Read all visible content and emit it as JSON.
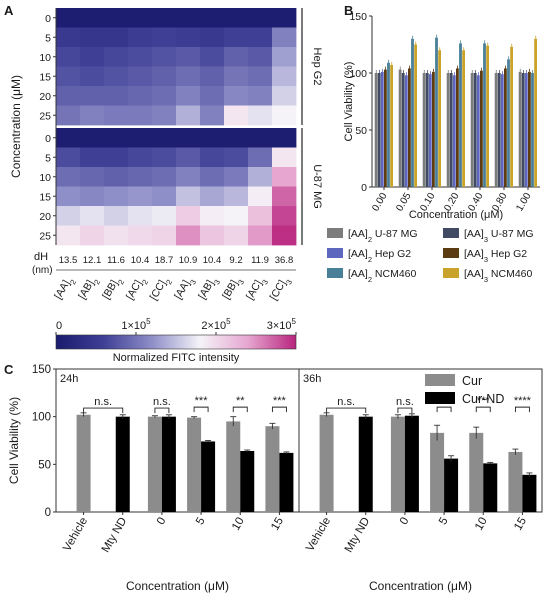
{
  "panels": {
    "a": "A",
    "b": "B",
    "c": "C"
  },
  "chart_data": [
    {
      "id": "A",
      "type": "heatmap",
      "ylabel": "Concentration (μM)",
      "row_labels": [
        "0",
        "5",
        "10",
        "15",
        "20",
        "25"
      ],
      "groups": [
        "Hep G2",
        "U-87 MG"
      ],
      "columns": [
        {
          "base": "[AA]",
          "sub": "2"
        },
        {
          "base": "[AB]",
          "sub": "2"
        },
        {
          "base": "[BB]",
          "sub": "2"
        },
        {
          "base": "[AC]",
          "sub": "2"
        },
        {
          "base": "[CC]",
          "sub": "2"
        },
        {
          "base": "[AA]",
          "sub": "3"
        },
        {
          "base": "[AB]",
          "sub": "3"
        },
        {
          "base": "[BB]",
          "sub": "3"
        },
        {
          "base": "[AC]",
          "sub": "3"
        },
        {
          "base": "[CC]",
          "sub": "3"
        }
      ],
      "dh_label": "dH",
      "dh_unit": "(nm)",
      "dh_values": [
        "13.5",
        "12.1",
        "11.6",
        "10.4",
        "18.7",
        "10.9",
        "10.4",
        "9.2",
        "11.9",
        "36.8"
      ],
      "values_e5": {
        "Hep G2": [
          [
            0.05,
            0.05,
            0.05,
            0.05,
            0.05,
            0.05,
            0.05,
            0.05,
            0.05,
            0.05
          ],
          [
            0.5,
            0.45,
            0.45,
            0.55,
            0.6,
            0.55,
            0.5,
            0.6,
            0.6,
            1.1
          ],
          [
            0.65,
            0.6,
            0.65,
            0.7,
            0.75,
            0.8,
            0.7,
            0.85,
            0.8,
            1.3
          ],
          [
            0.75,
            0.7,
            0.75,
            0.8,
            0.85,
            0.95,
            0.85,
            1.0,
            0.95,
            1.45
          ],
          [
            0.85,
            0.85,
            0.85,
            0.9,
            0.95,
            1.1,
            0.95,
            1.15,
            1.1,
            1.6
          ],
          [
            1.0,
            1.1,
            1.05,
            1.05,
            1.1,
            1.4,
            1.1,
            1.9,
            1.7,
            1.8
          ]
        ],
        "U-87 MG": [
          [
            0.05,
            0.05,
            0.05,
            0.05,
            0.05,
            0.05,
            0.05,
            0.05,
            0.05,
            0.05
          ],
          [
            0.7,
            0.6,
            0.6,
            0.65,
            0.7,
            0.8,
            0.65,
            0.7,
            0.95,
            1.9
          ],
          [
            0.95,
            0.9,
            0.85,
            0.9,
            0.95,
            1.1,
            0.95,
            1.05,
            1.4,
            2.4
          ],
          [
            1.2,
            1.15,
            1.2,
            1.25,
            1.2,
            1.5,
            1.35,
            1.45,
            1.85,
            2.7
          ],
          [
            1.6,
            1.7,
            1.6,
            1.7,
            1.75,
            2.1,
            1.85,
            1.8,
            2.2,
            2.85
          ],
          [
            1.9,
            2.05,
            1.95,
            2.0,
            2.05,
            2.5,
            2.15,
            2.05,
            2.45,
            2.95
          ]
        ]
      },
      "colorbar": {
        "ticks": [
          {
            "base": "0",
            "exp": ""
          },
          {
            "base": "1×10",
            "exp": "5"
          },
          {
            "base": "2×10",
            "exp": "5"
          },
          {
            "base": "3×10",
            "exp": "5"
          }
        ],
        "tick_values_e5": [
          0,
          1,
          2,
          3
        ],
        "label": "Normalized FITC intensity",
        "range_e5": [
          0,
          3
        ],
        "colors": [
          "#1a1a6e",
          "#3f3f96",
          "#8e8ec8",
          "#f5f3f8",
          "#e6a6d0",
          "#b8247e"
        ]
      }
    },
    {
      "id": "B",
      "type": "bar",
      "ylabel": "Cell Viability (%)",
      "xlabel": "Concentration (μM)",
      "ylim": [
        0,
        150
      ],
      "yticks": [
        "0",
        "50",
        "100",
        "150"
      ],
      "categories": [
        "0.00",
        "0.05",
        "0.10",
        "0.20",
        "0.40",
        "0.80",
        "1.00"
      ],
      "series": [
        {
          "name": "[AA]",
          "sub": "2",
          "suffix": " U-87 MG",
          "color": "#7c7c7c",
          "values": [
            100,
            103,
            100,
            100,
            100,
            100,
            101
          ]
        },
        {
          "name": "[AA]",
          "sub": "3",
          "suffix": " U-87 MG",
          "color": "#414a63",
          "values": [
            100,
            100,
            100,
            100,
            100,
            100,
            100
          ]
        },
        {
          "name": "[AA]",
          "sub": "2",
          "suffix": " Hep G2",
          "color": "#5d67bd",
          "values": [
            101,
            98,
            99,
            98,
            98,
            99,
            100
          ]
        },
        {
          "name": "[AA]",
          "sub": "3",
          "suffix": " Hep G2",
          "color": "#5a3b12",
          "values": [
            103,
            104,
            101,
            104,
            102,
            104,
            101
          ]
        },
        {
          "name": "[AA]",
          "sub": "2",
          "suffix": " NCM460",
          "color": "#4a8097",
          "values": [
            109,
            130,
            131,
            126,
            126,
            112,
            100
          ]
        },
        {
          "name": "[AA]",
          "sub": "3",
          "suffix": " NCM460",
          "color": "#c9a22a",
          "values": [
            107,
            125,
            120,
            120,
            124,
            123,
            130
          ]
        }
      ]
    },
    {
      "id": "C",
      "type": "bar",
      "ylabel": "Cell Viability (%)",
      "xlabel": "Concentration (μM)",
      "ylim": [
        0,
        150
      ],
      "yticks": [
        "0",
        "50",
        "100",
        "150"
      ],
      "legend": [
        {
          "name": "Cur",
          "color": "#8c8c8c"
        },
        {
          "name": "Cur-ND",
          "color": "#000000"
        }
      ],
      "panels": [
        {
          "time": "24h",
          "categories": [
            "Vehicle",
            "Mty ND",
            "0",
            "5",
            "10",
            "15"
          ],
          "cur": [
            102,
            null,
            100,
            99,
            95,
            90
          ],
          "cur_nd": [
            null,
            100,
            100,
            74,
            64,
            62
          ],
          "err_cur": [
            2,
            null,
            1,
            1,
            5,
            3
          ],
          "err_cur_nd": [
            null,
            2,
            2,
            1,
            1,
            1
          ],
          "sig": [
            "n.s.",
            "n.s.",
            "***",
            "**",
            "***"
          ]
        },
        {
          "time": "36h",
          "categories": [
            "Vehicle",
            "Mty ND",
            "0",
            "5",
            "10",
            "15"
          ],
          "cur": [
            102,
            null,
            100,
            83,
            83,
            63
          ],
          "cur_nd": [
            null,
            100,
            101,
            56,
            51,
            39
          ],
          "err_cur": [
            2,
            null,
            2,
            8,
            6,
            3
          ],
          "err_cur_nd": [
            null,
            2,
            2,
            3,
            1,
            2
          ],
          "sig": [
            "n.s.",
            "n.s.",
            "**",
            "***",
            "****"
          ]
        }
      ]
    }
  ]
}
